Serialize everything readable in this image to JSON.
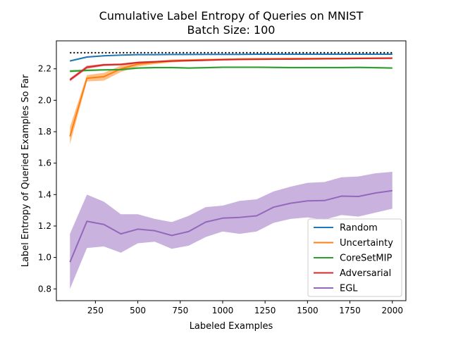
{
  "chart_data": {
    "type": "line",
    "title": "Cumulative Label Entropy of Queries on MNIST",
    "subtitle": "Batch Size: 100",
    "xlabel": "Labeled Examples",
    "ylabel": "Label Entropy of Queried Examples So Far",
    "xlim": [
      20,
      2080
    ],
    "ylim": [
      0.725,
      2.378
    ],
    "xticks": [
      250,
      500,
      750,
      1000,
      1250,
      1500,
      1750,
      2000
    ],
    "xtick_labels": [
      "250",
      "500",
      "750",
      "1000",
      "1250",
      "1500",
      "1750",
      "2000"
    ],
    "yticks": [
      0.8,
      1.0,
      1.2,
      1.4,
      1.6,
      1.8,
      2.0,
      2.2
    ],
    "ytick_labels": [
      "0.8",
      "1.0",
      "1.2",
      "1.4",
      "1.6",
      "1.8",
      "2.0",
      "2.2"
    ],
    "grid": false,
    "legend_position": "bottom-right",
    "reference_line": {
      "y": 2.3026,
      "x_range": [
        100,
        2000
      ],
      "style": "dotted",
      "color": "#000000"
    },
    "x": [
      100,
      200,
      300,
      400,
      500,
      600,
      700,
      800,
      900,
      1000,
      1100,
      1200,
      1300,
      1400,
      1500,
      1600,
      1700,
      1800,
      1900,
      2000
    ],
    "series": [
      {
        "name": "Random",
        "color": "#1f77b4",
        "values": [
          2.25,
          2.275,
          2.283,
          2.287,
          2.29,
          2.29,
          2.291,
          2.291,
          2.292,
          2.292,
          2.292,
          2.293,
          2.293,
          2.293,
          2.293,
          2.293,
          2.293,
          2.293,
          2.293,
          2.293
        ],
        "lower": [
          2.245,
          2.27,
          2.279,
          2.284,
          2.287,
          2.288,
          2.289,
          2.289,
          2.29,
          2.29,
          2.29,
          2.291,
          2.291,
          2.291,
          2.291,
          2.291,
          2.291,
          2.291,
          2.291,
          2.291
        ],
        "upper": [
          2.255,
          2.28,
          2.287,
          2.29,
          2.293,
          2.292,
          2.293,
          2.293,
          2.294,
          2.294,
          2.294,
          2.295,
          2.295,
          2.295,
          2.295,
          2.295,
          2.295,
          2.295,
          2.295,
          2.295
        ]
      },
      {
        "name": "Uncertainty",
        "color": "#ff7f0e",
        "values": [
          1.77,
          2.14,
          2.15,
          2.2,
          2.23,
          2.24,
          2.25,
          2.255,
          2.258,
          2.26,
          2.262,
          2.263,
          2.264,
          2.265,
          2.265,
          2.266,
          2.266,
          2.267,
          2.267,
          2.267
        ],
        "lower": [
          1.72,
          2.12,
          2.125,
          2.18,
          2.215,
          2.23,
          2.24,
          2.248,
          2.252,
          2.255,
          2.257,
          2.258,
          2.259,
          2.26,
          2.26,
          2.261,
          2.261,
          2.262,
          2.262,
          2.262
        ],
        "upper": [
          1.83,
          2.16,
          2.175,
          2.22,
          2.245,
          2.25,
          2.26,
          2.262,
          2.264,
          2.265,
          2.267,
          2.268,
          2.269,
          2.27,
          2.27,
          2.271,
          2.271,
          2.272,
          2.272,
          2.272
        ]
      },
      {
        "name": "CoreSetMIP",
        "color": "#2ca02c",
        "values": [
          2.185,
          2.19,
          2.193,
          2.195,
          2.205,
          2.208,
          2.208,
          2.205,
          2.207,
          2.21,
          2.21,
          2.21,
          2.209,
          2.208,
          2.208,
          2.208,
          2.208,
          2.209,
          2.207,
          2.205
        ],
        "lower": [
          2.178,
          2.184,
          2.188,
          2.19,
          2.2,
          2.203,
          2.203,
          2.2,
          2.202,
          2.205,
          2.205,
          2.205,
          2.204,
          2.203,
          2.203,
          2.203,
          2.203,
          2.204,
          2.202,
          2.2
        ],
        "upper": [
          2.192,
          2.196,
          2.198,
          2.2,
          2.21,
          2.213,
          2.213,
          2.21,
          2.212,
          2.215,
          2.215,
          2.215,
          2.214,
          2.213,
          2.213,
          2.213,
          2.213,
          2.214,
          2.212,
          2.21
        ]
      },
      {
        "name": "Adversarial",
        "color": "#d62728",
        "values": [
          2.13,
          2.21,
          2.225,
          2.228,
          2.24,
          2.245,
          2.25,
          2.252,
          2.255,
          2.258,
          2.26,
          2.261,
          2.262,
          2.262,
          2.263,
          2.264,
          2.265,
          2.266,
          2.267,
          2.268
        ],
        "lower": [
          2.12,
          2.2,
          2.218,
          2.222,
          2.234,
          2.24,
          2.245,
          2.247,
          2.25,
          2.253,
          2.255,
          2.256,
          2.257,
          2.257,
          2.258,
          2.259,
          2.26,
          2.261,
          2.262,
          2.263
        ],
        "upper": [
          2.14,
          2.22,
          2.232,
          2.234,
          2.246,
          2.25,
          2.255,
          2.257,
          2.26,
          2.263,
          2.265,
          2.266,
          2.267,
          2.267,
          2.268,
          2.269,
          2.27,
          2.271,
          2.272,
          2.273
        ]
      },
      {
        "name": "EGL",
        "color": "#9467bd",
        "values": [
          0.97,
          1.23,
          1.21,
          1.15,
          1.18,
          1.17,
          1.14,
          1.165,
          1.225,
          1.25,
          1.255,
          1.265,
          1.32,
          1.345,
          1.36,
          1.362,
          1.39,
          1.388,
          1.41,
          1.425
        ],
        "lower": [
          0.8,
          1.06,
          1.07,
          1.03,
          1.09,
          1.1,
          1.055,
          1.075,
          1.13,
          1.165,
          1.15,
          1.165,
          1.22,
          1.245,
          1.255,
          1.24,
          1.27,
          1.26,
          1.285,
          1.31
        ],
        "upper": [
          1.15,
          1.4,
          1.355,
          1.275,
          1.275,
          1.245,
          1.225,
          1.265,
          1.32,
          1.33,
          1.36,
          1.37,
          1.42,
          1.45,
          1.475,
          1.48,
          1.51,
          1.515,
          1.535,
          1.545
        ]
      }
    ]
  }
}
